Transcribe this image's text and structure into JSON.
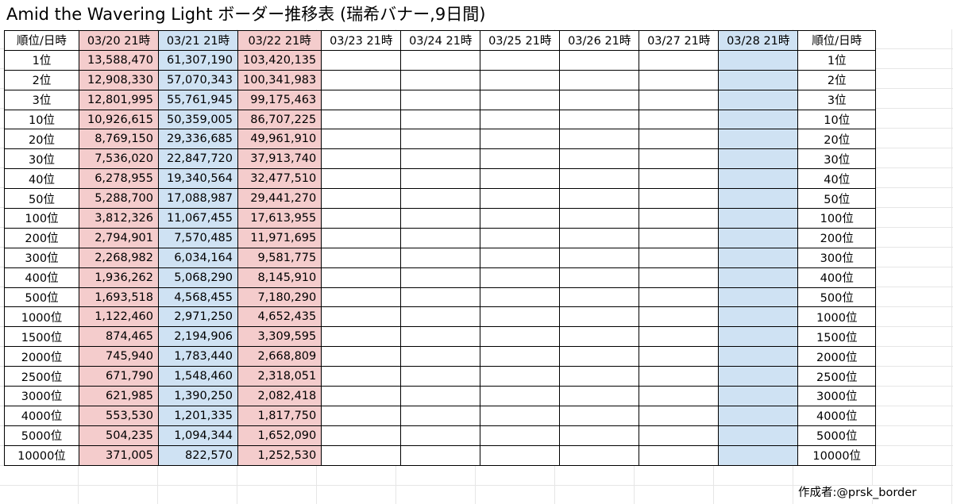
{
  "title": "Amid the Wavering Light ボーダー推移表 (瑞希バナー,9日間)",
  "header": {
    "rank_left": "順位/日時",
    "dates": [
      "03/20 21時",
      "03/21 21時",
      "03/22 21時",
      "03/23 21時",
      "03/24 21時",
      "03/25 21時",
      "03/26 21時",
      "03/27 21時",
      "03/28 21時"
    ],
    "rank_right": "順位/日時"
  },
  "rows": [
    {
      "rank": "1位",
      "values": [
        "13,588,470",
        "61,307,190",
        "103,420,135",
        "",
        "",
        "",
        "",
        "",
        ""
      ]
    },
    {
      "rank": "2位",
      "values": [
        "12,908,330",
        "57,070,343",
        "100,341,983",
        "",
        "",
        "",
        "",
        "",
        ""
      ]
    },
    {
      "rank": "3位",
      "values": [
        "12,801,995",
        "55,761,945",
        "99,175,463",
        "",
        "",
        "",
        "",
        "",
        ""
      ]
    },
    {
      "rank": "10位",
      "values": [
        "10,926,615",
        "50,359,005",
        "86,707,225",
        "",
        "",
        "",
        "",
        "",
        ""
      ]
    },
    {
      "rank": "20位",
      "values": [
        "8,769,150",
        "29,336,685",
        "49,961,910",
        "",
        "",
        "",
        "",
        "",
        ""
      ]
    },
    {
      "rank": "30位",
      "values": [
        "7,536,020",
        "22,847,720",
        "37,913,740",
        "",
        "",
        "",
        "",
        "",
        ""
      ]
    },
    {
      "rank": "40位",
      "values": [
        "6,278,955",
        "19,340,564",
        "32,477,510",
        "",
        "",
        "",
        "",
        "",
        ""
      ]
    },
    {
      "rank": "50位",
      "values": [
        "5,288,700",
        "17,088,987",
        "29,441,270",
        "",
        "",
        "",
        "",
        "",
        ""
      ]
    },
    {
      "rank": "100位",
      "values": [
        "3,812,326",
        "11,067,455",
        "17,613,955",
        "",
        "",
        "",
        "",
        "",
        ""
      ]
    },
    {
      "rank": "200位",
      "values": [
        "2,794,901",
        "7,570,485",
        "11,971,695",
        "",
        "",
        "",
        "",
        "",
        ""
      ]
    },
    {
      "rank": "300位",
      "values": [
        "2,268,982",
        "6,034,164",
        "9,581,775",
        "",
        "",
        "",
        "",
        "",
        ""
      ]
    },
    {
      "rank": "400位",
      "values": [
        "1,936,262",
        "5,068,290",
        "8,145,910",
        "",
        "",
        "",
        "",
        "",
        ""
      ]
    },
    {
      "rank": "500位",
      "values": [
        "1,693,518",
        "4,568,455",
        "7,180,290",
        "",
        "",
        "",
        "",
        "",
        ""
      ]
    },
    {
      "rank": "1000位",
      "values": [
        "1,122,460",
        "2,971,250",
        "4,652,435",
        "",
        "",
        "",
        "",
        "",
        ""
      ]
    },
    {
      "rank": "1500位",
      "values": [
        "874,465",
        "2,194,906",
        "3,309,595",
        "",
        "",
        "",
        "",
        "",
        ""
      ]
    },
    {
      "rank": "2000位",
      "values": [
        "745,940",
        "1,783,440",
        "2,668,809",
        "",
        "",
        "",
        "",
        "",
        ""
      ]
    },
    {
      "rank": "2500位",
      "values": [
        "671,790",
        "1,548,460",
        "2,318,051",
        "",
        "",
        "",
        "",
        "",
        ""
      ]
    },
    {
      "rank": "3000位",
      "values": [
        "621,985",
        "1,390,250",
        "2,082,418",
        "",
        "",
        "",
        "",
        "",
        ""
      ]
    },
    {
      "rank": "4000位",
      "values": [
        "553,530",
        "1,201,335",
        "1,817,750",
        "",
        "",
        "",
        "",
        "",
        ""
      ]
    },
    {
      "rank": "5000位",
      "values": [
        "504,235",
        "1,094,344",
        "1,652,090",
        "",
        "",
        "",
        "",
        "",
        ""
      ]
    },
    {
      "rank": "10000位",
      "values": [
        "371,005",
        "822,570",
        "1,252,530",
        "",
        "",
        "",
        "",
        "",
        ""
      ]
    }
  ],
  "column_colors": [
    "pink",
    "blue",
    "pink",
    "",
    "",
    "",
    "",
    "",
    "blue"
  ],
  "colors": {
    "pink": "#f4cccc",
    "blue": "#cfe2f3",
    "gridline": "#e6e6e6",
    "border": "#000000"
  },
  "credit": "作成者:@prsk_border"
}
